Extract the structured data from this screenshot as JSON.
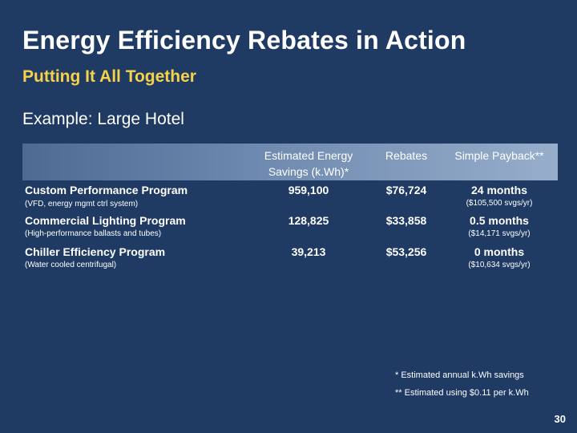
{
  "slide": {
    "title": "Energy Efficiency Rebates in Action",
    "subtitle": "Putting It All Together",
    "example": "Example: Large Hotel",
    "page_number": "30"
  },
  "table": {
    "headers": {
      "savings": "Estimated Energy Savings (k.Wh)*",
      "rebates": "Rebates",
      "payback": "Simple Payback**"
    },
    "rows": [
      {
        "program": "Custom Performance Program",
        "note": "(VFD, energy mgmt ctrl system)",
        "savings": "959,100",
        "rebates": "$76,724",
        "payback": "24 months",
        "payback_note": "($105,500 svgs/yr)"
      },
      {
        "program": "Commercial Lighting Program",
        "note": "(High-performance ballasts and tubes)",
        "savings": "128,825",
        "rebates": "$33,858",
        "payback": "0.5 months",
        "payback_note": "($14,171 svgs/yr)"
      },
      {
        "program": "Chiller Efficiency Program",
        "note": "(Water cooled centrifugal)",
        "savings": "39,213",
        "rebates": "$53,256",
        "payback": "0 months",
        "payback_note": "($10,634 svgs/yr)"
      }
    ]
  },
  "footnotes": {
    "one": "* Estimated annual k.Wh savings",
    "two": "** Estimated using $0.11 per k.Wh"
  },
  "colors": {
    "background": "#1f3a63",
    "subtitle": "#f6d24a"
  }
}
